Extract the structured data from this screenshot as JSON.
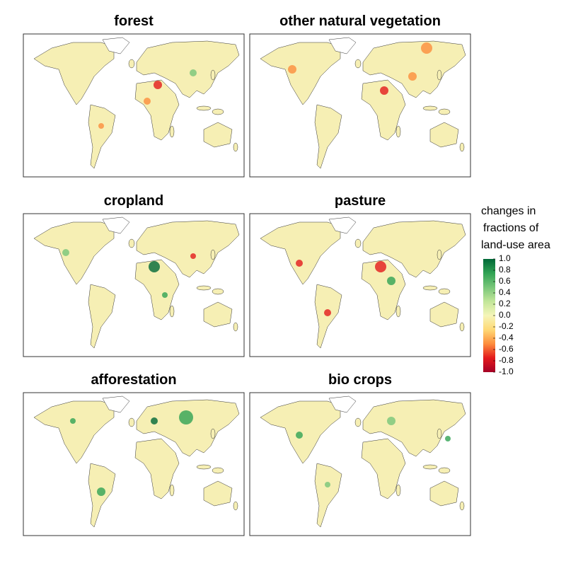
{
  "panels": [
    {
      "title": "forest"
    },
    {
      "title": "other natural vegetation"
    },
    {
      "title": "cropland"
    },
    {
      "title": "pasture"
    },
    {
      "title": "afforestation"
    },
    {
      "title": "bio crops"
    }
  ],
  "legend": {
    "title_lines": [
      "changes in",
      "fractions of",
      "land-use area"
    ],
    "lim": [
      -1,
      1
    ],
    "ticks": [
      {
        "value": 1,
        "label": "1.0"
      },
      0.8,
      0.6,
      0.4,
      0.2,
      {
        "value": 0,
        "label": "0.0"
      },
      -0.2,
      -0.4,
      -0.6,
      -0.8,
      {
        "value": -1,
        "label": "-1.0"
      }
    ],
    "colors": [
      "#006837",
      "#31a354",
      "#78c679",
      "#c2e699",
      "#f5f5b8",
      "#fed976",
      "#fd8d3c",
      "#e31a1c",
      "#a50026"
    ]
  }
}
